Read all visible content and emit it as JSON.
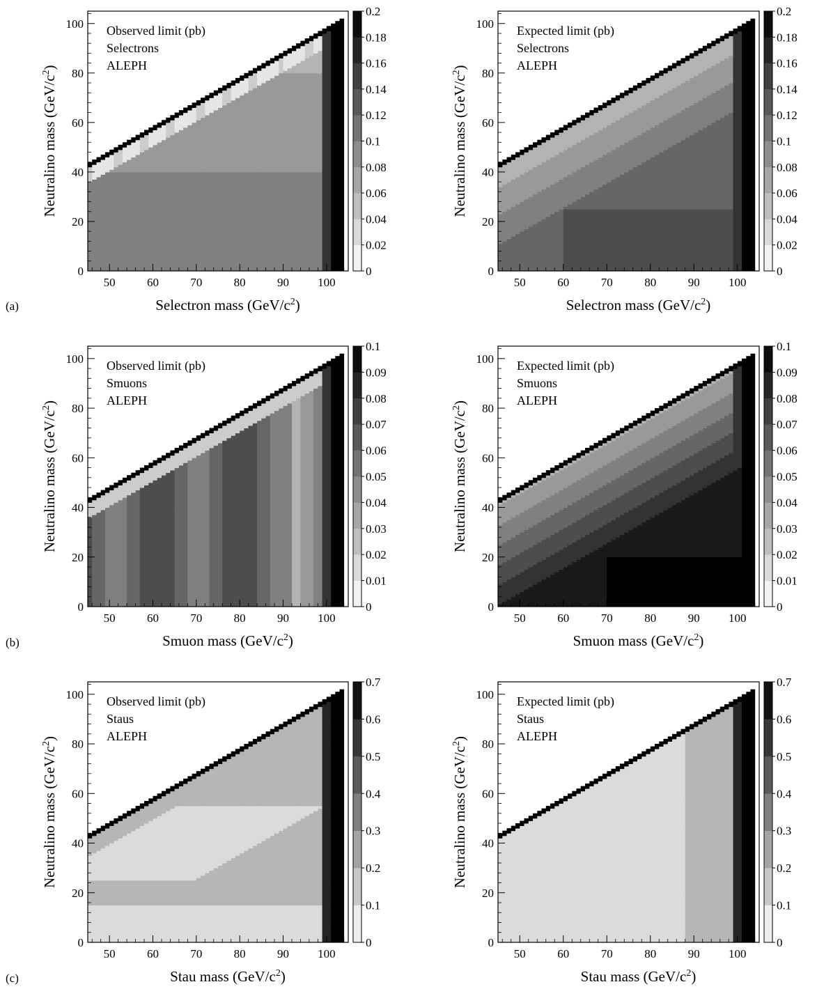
{
  "figure": {
    "rows": [
      {
        "label": "(a)",
        "scale_ticks": [
          "0",
          "0.02",
          "0.04",
          "0.06",
          "0.08",
          "0.1",
          "0.12",
          "0.14",
          "0.16",
          "0.18",
          "0.2"
        ],
        "panels": [
          {
            "id": "a-obs",
            "particle": "Selectron",
            "caption": [
              "Observed limit (pb)",
              "Selectrons",
              "ALEPH"
            ],
            "xlabel": "Selectron mass (GeV/c",
            "ylabel": "Neutralino mass (GeV/c",
            "zmax": 0.2
          },
          {
            "id": "a-exp",
            "particle": "Selectron",
            "caption": [
              "Expected limit (pb)",
              "Selectrons",
              "ALEPH"
            ],
            "xlabel": "Selectron mass (GeV/c",
            "ylabel": "Neutralino mass (GeV/c",
            "zmax": 0.2
          }
        ]
      },
      {
        "label": "(b)",
        "scale_ticks": [
          "0",
          "0.01",
          "0.02",
          "0.03",
          "0.04",
          "0.05",
          "0.06",
          "0.07",
          "0.08",
          "0.09",
          "0.1"
        ],
        "panels": [
          {
            "id": "b-obs",
            "particle": "Smuon",
            "caption": [
              "Observed limit (pb)",
              "Smuons",
              "ALEPH"
            ],
            "xlabel": "Smuon mass (GeV/c",
            "ylabel": "Neutralino mass (GeV/c",
            "zmax": 0.1
          },
          {
            "id": "b-exp",
            "particle": "Smuon",
            "caption": [
              "Expected limit (pb)",
              "Smuons",
              "ALEPH"
            ],
            "xlabel": "Smuon mass (GeV/c",
            "ylabel": "Neutralino mass (GeV/c",
            "zmax": 0.1
          }
        ]
      },
      {
        "label": "(c)",
        "scale_ticks": [
          "0",
          "0.1",
          "0.2",
          "0.3",
          "0.4",
          "0.5",
          "0.6",
          "0.7"
        ],
        "panels": [
          {
            "id": "c-obs",
            "particle": "Stau",
            "caption": [
              "Observed limit (pb)",
              "Staus",
              "ALEPH"
            ],
            "xlabel": "Stau mass (GeV/c",
            "ylabel": "Neutralino mass (GeV/c",
            "zmax": 0.7
          },
          {
            "id": "c-exp",
            "particle": "Stau",
            "caption": [
              "Expected limit (pb)",
              "Staus",
              "ALEPH"
            ],
            "xlabel": "Stau mass (GeV/c",
            "ylabel": "Neutralino mass (GeV/c",
            "zmax": 0.7
          }
        ]
      }
    ],
    "x_ticks": [
      "50",
      "60",
      "70",
      "80",
      "90",
      "100"
    ],
    "y_ticks": [
      "0",
      "20",
      "40",
      "60",
      "80",
      "100"
    ],
    "unit_superscript": "2",
    "colors": {
      "frame": "#000000",
      "background": "#ffffff",
      "darkest": "#000000",
      "lightest": "#ffffff"
    }
  },
  "chart_data": [
    {
      "type": "heatmap",
      "title": "Observed limit (pb)",
      "process": "Selectrons",
      "experiment": "ALEPH",
      "xlabel": "Selectron mass (GeV/c2)",
      "ylabel": "Neutralino mass (GeV/c2)",
      "xlim": [
        45,
        105
      ],
      "ylim": [
        0,
        105
      ],
      "zlim": [
        0,
        0.2
      ],
      "z_unit": "pb",
      "colorscale": "white (0) to black (0.2), 10 grey bands",
      "kinematic_boundary": "neutralino mass < selectron mass"
    },
    {
      "type": "heatmap",
      "title": "Expected limit (pb)",
      "process": "Selectrons",
      "experiment": "ALEPH",
      "xlabel": "Selectron mass (GeV/c2)",
      "ylabel": "Neutralino mass (GeV/c2)",
      "xlim": [
        45,
        105
      ],
      "ylim": [
        0,
        105
      ],
      "zlim": [
        0,
        0.2
      ],
      "z_unit": "pb",
      "colorscale": "white (0) to black (0.2), 10 grey bands",
      "kinematic_boundary": "neutralino mass < selectron mass"
    },
    {
      "type": "heatmap",
      "title": "Observed limit (pb)",
      "process": "Smuons",
      "experiment": "ALEPH",
      "xlabel": "Smuon mass (GeV/c2)",
      "ylabel": "Neutralino mass (GeV/c2)",
      "xlim": [
        45,
        105
      ],
      "ylim": [
        0,
        105
      ],
      "zlim": [
        0,
        0.1
      ],
      "z_unit": "pb",
      "colorscale": "white (0) to black (0.1), 10 grey bands",
      "kinematic_boundary": "neutralino mass < smuon mass"
    },
    {
      "type": "heatmap",
      "title": "Expected limit (pb)",
      "process": "Smuons",
      "experiment": "ALEPH",
      "xlabel": "Smuon mass (GeV/c2)",
      "ylabel": "Neutralino mass (GeV/c2)",
      "xlim": [
        45,
        105
      ],
      "ylim": [
        0,
        105
      ],
      "zlim": [
        0,
        0.1
      ],
      "z_unit": "pb",
      "colorscale": "white (0) to black (0.1), 10 grey bands",
      "kinematic_boundary": "neutralino mass < smuon mass"
    },
    {
      "type": "heatmap",
      "title": "Observed limit (pb)",
      "process": "Staus",
      "experiment": "ALEPH",
      "xlabel": "Stau mass (GeV/c2)",
      "ylabel": "Neutralino mass (GeV/c2)",
      "xlim": [
        45,
        105
      ],
      "ylim": [
        0,
        105
      ],
      "zlim": [
        0,
        0.7
      ],
      "z_unit": "pb",
      "colorscale": "white (0) to black (0.7), 7 grey bands",
      "kinematic_boundary": "neutralino mass < stau mass"
    },
    {
      "type": "heatmap",
      "title": "Expected limit (pb)",
      "process": "Staus",
      "experiment": "ALEPH",
      "xlabel": "Stau mass (GeV/c2)",
      "ylabel": "Neutralino mass (GeV/c2)",
      "xlim": [
        45,
        105
      ],
      "ylim": [
        0,
        105
      ],
      "zlim": [
        0,
        0.7
      ],
      "z_unit": "pb",
      "colorscale": "white (0) to black (0.7), 7 grey bands",
      "kinematic_boundary": "neutralino mass < stau mass"
    }
  ]
}
